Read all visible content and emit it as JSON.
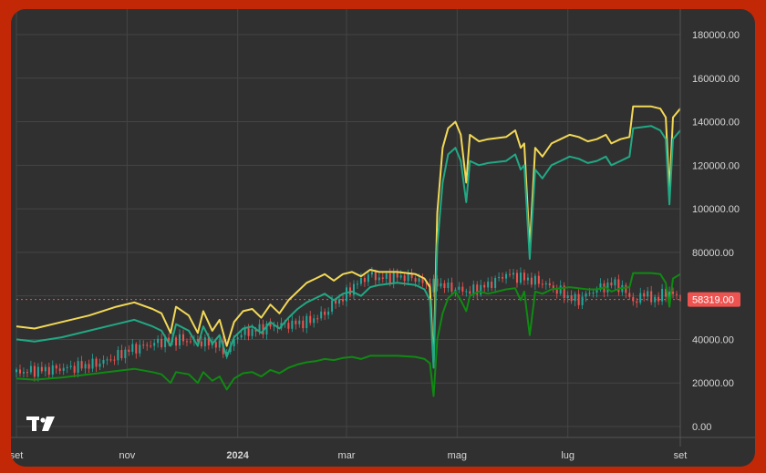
{
  "chart_data": {
    "type": "line",
    "title": "",
    "xlabel": "",
    "ylabel": "",
    "ylim": [
      0,
      190000
    ],
    "y_ticks": [
      "180000.00",
      "160000.00",
      "140000.00",
      "120000.00",
      "100000.00",
      "80000.00",
      "60000.00",
      "40000.00",
      "20000.00",
      "0.00"
    ],
    "y_tick_values": [
      180000,
      160000,
      140000,
      120000,
      100000,
      80000,
      60000,
      40000,
      20000,
      0
    ],
    "x_ticks": [
      {
        "label": "set",
        "t": 0
      },
      {
        "label": "nov",
        "t": 61
      },
      {
        "label": "2024",
        "t": 122,
        "bold": true
      },
      {
        "label": "mar",
        "t": 182
      },
      {
        "label": "mag",
        "t": 243
      },
      {
        "label": "lug",
        "t": 304
      },
      {
        "label": "set",
        "t": 366
      }
    ],
    "x_range_days": [
      0,
      366
    ],
    "current_price_label": "58319.00",
    "current_price_value": 58319,
    "grid": true,
    "legend": "none",
    "colors": {
      "yellow": "#f2d857",
      "teal": "#22a884",
      "green": "#0f8a12",
      "candle_up": "#26a69a",
      "candle_down": "#ef5350",
      "price_line": "#ef5350",
      "grid": "#454545"
    },
    "series": [
      {
        "color": "#f2d857",
        "points": [
          [
            0,
            46000
          ],
          [
            10,
            45000
          ],
          [
            25,
            48000
          ],
          [
            40,
            51000
          ],
          [
            55,
            55000
          ],
          [
            65,
            57000
          ],
          [
            75,
            54000
          ],
          [
            80,
            52000
          ],
          [
            85,
            43000
          ],
          [
            88,
            55000
          ],
          [
            95,
            51000
          ],
          [
            100,
            43000
          ],
          [
            103,
            53000
          ],
          [
            108,
            44000
          ],
          [
            112,
            49000
          ],
          [
            116,
            37000
          ],
          [
            120,
            48000
          ],
          [
            125,
            53000
          ],
          [
            130,
            54000
          ],
          [
            135,
            50000
          ],
          [
            140,
            56000
          ],
          [
            145,
            52000
          ],
          [
            150,
            58000
          ],
          [
            155,
            62000
          ],
          [
            160,
            66000
          ],
          [
            165,
            68000
          ],
          [
            170,
            70000
          ],
          [
            175,
            67000
          ],
          [
            180,
            70000
          ],
          [
            185,
            71000
          ],
          [
            190,
            69000
          ],
          [
            195,
            72000
          ],
          [
            200,
            71000
          ],
          [
            210,
            71000
          ],
          [
            220,
            70000
          ],
          [
            225,
            68000
          ],
          [
            228,
            64000
          ],
          [
            230,
            29000
          ],
          [
            232,
            98000
          ],
          [
            235,
            128000
          ],
          [
            238,
            137000
          ],
          [
            242,
            140000
          ],
          [
            245,
            134000
          ],
          [
            248,
            112000
          ],
          [
            250,
            134000
          ],
          [
            255,
            131000
          ],
          [
            260,
            132000
          ],
          [
            270,
            133000
          ],
          [
            275,
            136000
          ],
          [
            278,
            128000
          ],
          [
            280,
            130000
          ],
          [
            283,
            82000
          ],
          [
            286,
            128000
          ],
          [
            290,
            124000
          ],
          [
            295,
            130000
          ],
          [
            300,
            132000
          ],
          [
            305,
            134000
          ],
          [
            310,
            133000
          ],
          [
            315,
            131000
          ],
          [
            320,
            132000
          ],
          [
            325,
            134000
          ],
          [
            328,
            130000
          ],
          [
            333,
            132000
          ],
          [
            338,
            133000
          ],
          [
            340,
            147000
          ],
          [
            350,
            147000
          ],
          [
            355,
            146000
          ],
          [
            358,
            142000
          ],
          [
            360,
            108000
          ],
          [
            362,
            142000
          ],
          [
            366,
            146000
          ]
        ]
      },
      {
        "color": "#22a884",
        "points": [
          [
            0,
            40000
          ],
          [
            10,
            39000
          ],
          [
            25,
            41000
          ],
          [
            40,
            44000
          ],
          [
            55,
            47000
          ],
          [
            65,
            49000
          ],
          [
            75,
            46000
          ],
          [
            80,
            44000
          ],
          [
            85,
            37000
          ],
          [
            88,
            47000
          ],
          [
            95,
            44000
          ],
          [
            100,
            37000
          ],
          [
            103,
            46000
          ],
          [
            108,
            38000
          ],
          [
            112,
            42000
          ],
          [
            116,
            32000
          ],
          [
            120,
            41000
          ],
          [
            125,
            45000
          ],
          [
            130,
            46000
          ],
          [
            135,
            43000
          ],
          [
            140,
            48000
          ],
          [
            145,
            45000
          ],
          [
            150,
            50000
          ],
          [
            155,
            54000
          ],
          [
            160,
            57000
          ],
          [
            165,
            59000
          ],
          [
            170,
            61000
          ],
          [
            175,
            58000
          ],
          [
            180,
            61000
          ],
          [
            185,
            62000
          ],
          [
            190,
            60000
          ],
          [
            195,
            64000
          ],
          [
            200,
            65000
          ],
          [
            210,
            66000
          ],
          [
            220,
            65000
          ],
          [
            225,
            63000
          ],
          [
            228,
            58000
          ],
          [
            230,
            27000
          ],
          [
            232,
            83000
          ],
          [
            235,
            112000
          ],
          [
            238,
            125000
          ],
          [
            242,
            128000
          ],
          [
            245,
            122000
          ],
          [
            248,
            103000
          ],
          [
            250,
            122000
          ],
          [
            255,
            120000
          ],
          [
            260,
            121000
          ],
          [
            270,
            122000
          ],
          [
            275,
            125000
          ],
          [
            278,
            118000
          ],
          [
            280,
            120000
          ],
          [
            283,
            77000
          ],
          [
            286,
            118000
          ],
          [
            290,
            114000
          ],
          [
            295,
            120000
          ],
          [
            300,
            122000
          ],
          [
            305,
            124000
          ],
          [
            310,
            123000
          ],
          [
            315,
            121000
          ],
          [
            320,
            122000
          ],
          [
            325,
            124000
          ],
          [
            328,
            120000
          ],
          [
            333,
            122000
          ],
          [
            338,
            124000
          ],
          [
            340,
            137000
          ],
          [
            350,
            138000
          ],
          [
            355,
            136000
          ],
          [
            358,
            132000
          ],
          [
            360,
            102000
          ],
          [
            362,
            132000
          ],
          [
            366,
            136000
          ]
        ]
      },
      {
        "color": "#0f8a12",
        "points": [
          [
            0,
            22000
          ],
          [
            10,
            21500
          ],
          [
            25,
            22500
          ],
          [
            40,
            24000
          ],
          [
            55,
            25500
          ],
          [
            65,
            26500
          ],
          [
            75,
            25000
          ],
          [
            80,
            24000
          ],
          [
            85,
            20000
          ],
          [
            88,
            25000
          ],
          [
            95,
            24000
          ],
          [
            100,
            20000
          ],
          [
            103,
            25000
          ],
          [
            108,
            21000
          ],
          [
            112,
            23000
          ],
          [
            116,
            17000
          ],
          [
            120,
            22000
          ],
          [
            125,
            24500
          ],
          [
            130,
            25000
          ],
          [
            135,
            23000
          ],
          [
            140,
            26000
          ],
          [
            145,
            24500
          ],
          [
            150,
            27000
          ],
          [
            155,
            28500
          ],
          [
            160,
            29500
          ],
          [
            165,
            30000
          ],
          [
            170,
            31000
          ],
          [
            175,
            30500
          ],
          [
            180,
            31500
          ],
          [
            185,
            32000
          ],
          [
            190,
            31000
          ],
          [
            195,
            32500
          ],
          [
            200,
            32500
          ],
          [
            210,
            32500
          ],
          [
            220,
            32000
          ],
          [
            225,
            31000
          ],
          [
            228,
            29000
          ],
          [
            230,
            14000
          ],
          [
            232,
            40000
          ],
          [
            235,
            52000
          ],
          [
            238,
            59000
          ],
          [
            242,
            62000
          ],
          [
            245,
            58000
          ],
          [
            248,
            53000
          ],
          [
            250,
            60000
          ],
          [
            255,
            62000
          ],
          [
            260,
            61000
          ],
          [
            270,
            63000
          ],
          [
            275,
            63500
          ],
          [
            278,
            58000
          ],
          [
            280,
            62000
          ],
          [
            283,
            42000
          ],
          [
            286,
            62000
          ],
          [
            290,
            61000
          ],
          [
            295,
            63000
          ],
          [
            300,
            63500
          ],
          [
            305,
            64000
          ],
          [
            310,
            63500
          ],
          [
            315,
            63000
          ],
          [
            320,
            63000
          ],
          [
            325,
            64000
          ],
          [
            328,
            62000
          ],
          [
            333,
            63500
          ],
          [
            338,
            64000
          ],
          [
            340,
            70500
          ],
          [
            350,
            70500
          ],
          [
            355,
            70000
          ],
          [
            358,
            66000
          ],
          [
            360,
            55000
          ],
          [
            362,
            68000
          ],
          [
            366,
            70000
          ]
        ]
      },
      {
        "color": "#9a9a9a",
        "points": [
          [
            0,
            25000
          ],
          [
            15,
            26000
          ],
          [
            30,
            27000
          ],
          [
            45,
            29000
          ],
          [
            55,
            32000
          ],
          [
            61,
            35000
          ],
          [
            70,
            37000
          ],
          [
            80,
            39000
          ],
          [
            90,
            40000
          ],
          [
            100,
            39000
          ],
          [
            110,
            38000
          ],
          [
            116,
            34000
          ],
          [
            122,
            42000
          ],
          [
            130,
            44000
          ],
          [
            140,
            46000
          ],
          [
            150,
            47000
          ],
          [
            160,
            48000
          ],
          [
            165,
            50000
          ],
          [
            170,
            52000
          ],
          [
            175,
            57000
          ],
          [
            180,
            59000
          ],
          [
            185,
            64000
          ],
          [
            190,
            67000
          ],
          [
            195,
            70000
          ],
          [
            200,
            68000
          ],
          [
            210,
            69000
          ],
          [
            220,
            68000
          ],
          [
            228,
            64000
          ],
          [
            232,
            66000
          ],
          [
            238,
            64000
          ],
          [
            243,
            63000
          ],
          [
            250,
            62000
          ],
          [
            260,
            65000
          ],
          [
            270,
            70000
          ],
          [
            280,
            68000
          ],
          [
            290,
            66000
          ],
          [
            300,
            62000
          ],
          [
            305,
            59000
          ],
          [
            310,
            58000
          ],
          [
            315,
            61000
          ],
          [
            320,
            63000
          ],
          [
            330,
            66000
          ],
          [
            338,
            60000
          ],
          [
            342,
            56000
          ],
          [
            345,
            63000
          ],
          [
            350,
            58000
          ],
          [
            355,
            60000
          ],
          [
            360,
            62000
          ],
          [
            366,
            58319
          ]
        ]
      }
    ]
  }
}
